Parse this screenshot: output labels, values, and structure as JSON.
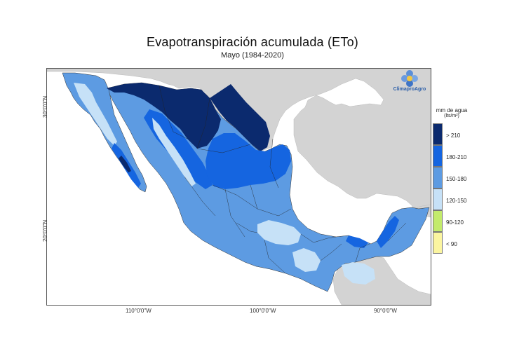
{
  "title": "Evapotranspiración acumulada (ETo)",
  "subtitle": "Mayo (1984-2020)",
  "axes": {
    "lat_labels": [
      "30°0'0\"N",
      "20°0'0\"N"
    ],
    "lon_labels": [
      "110°0'0\"W",
      "100°0'0\"W",
      "90°0'0\"W"
    ]
  },
  "legend": {
    "title": "mm de agua",
    "unit": "(lts/m²)",
    "classes": [
      {
        "label": "> 210",
        "color": "#0b2a6e"
      },
      {
        "label": "180-210",
        "color": "#1565e0"
      },
      {
        "label": "150-180",
        "color": "#5d9be2"
      },
      {
        "label": "120-150",
        "color": "#c6e1f7"
      },
      {
        "label": "90-120",
        "color": "#c3eb6c"
      },
      {
        "label": "< 90",
        "color": "#fbf5a0"
      }
    ]
  },
  "logo": {
    "text": "ClimaproAgro"
  },
  "colors": {
    "land_other": "#d3d3d3",
    "sea": "#ffffff",
    "border": "#333333"
  }
}
